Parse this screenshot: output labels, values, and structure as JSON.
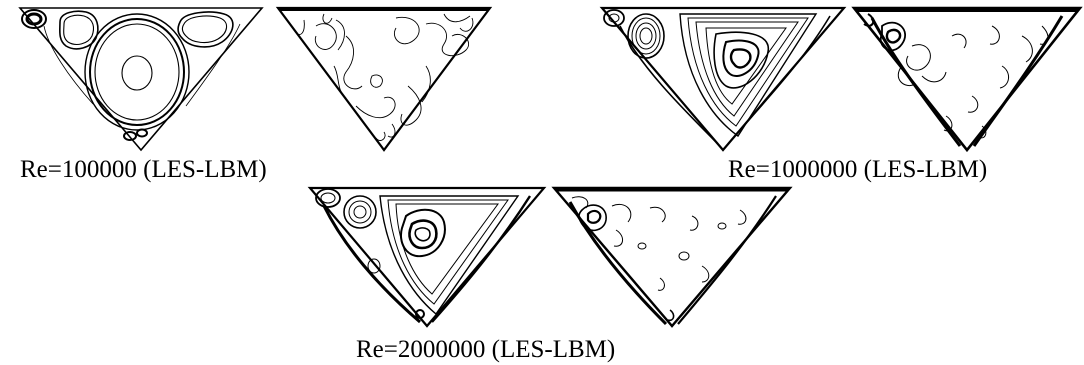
{
  "figure": {
    "captions": {
      "re_100000": "Re=100000 (LES-LBM)",
      "re_1000000": "Re=1000000 (LES-LBM)",
      "re_2000000": "Re=2000000 (LES-LBM)"
    },
    "panels": [
      {
        "caption": "re_100000",
        "field": "streamlines"
      },
      {
        "caption": "re_100000",
        "field": "vorticity-contours"
      },
      {
        "caption": "re_1000000",
        "field": "streamlines"
      },
      {
        "caption": "re_1000000",
        "field": "vorticity-contours"
      },
      {
        "caption": "re_2000000",
        "field": "streamlines"
      },
      {
        "caption": "re_2000000",
        "field": "vorticity-contours"
      }
    ],
    "line_color": "#000000",
    "background": "#ffffff"
  }
}
